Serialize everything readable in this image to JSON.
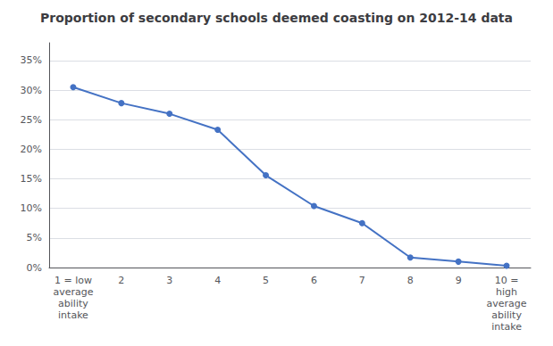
{
  "chart_data": {
    "type": "line",
    "title": "Proportion of secondary schools deemed coasting on 2012-14 data",
    "categories": [
      "1 = low\naverage\nability\nintake",
      "2",
      "3",
      "4",
      "5",
      "6",
      "7",
      "8",
      "9",
      "10 =\nhigh\naverage\nability\nintake"
    ],
    "values": [
      0.305,
      0.278,
      0.26,
      0.233,
      0.156,
      0.104,
      0.075,
      0.017,
      0.01,
      0.003
    ],
    "color": "#4472C4",
    "marker": "circle",
    "ylim": [
      0,
      0.38
    ],
    "yticks": [
      {
        "value": 0,
        "label": "0%"
      },
      {
        "value": 0.05,
        "label": "5%"
      },
      {
        "value": 0.1,
        "label": "10%"
      },
      {
        "value": 0.15,
        "label": "15%"
      },
      {
        "value": 0.2,
        "label": "20%"
      },
      {
        "value": 0.25,
        "label": "25%"
      },
      {
        "value": 0.3,
        "label": "30%"
      },
      {
        "value": 0.35,
        "label": "35%"
      }
    ],
    "grid": true
  }
}
